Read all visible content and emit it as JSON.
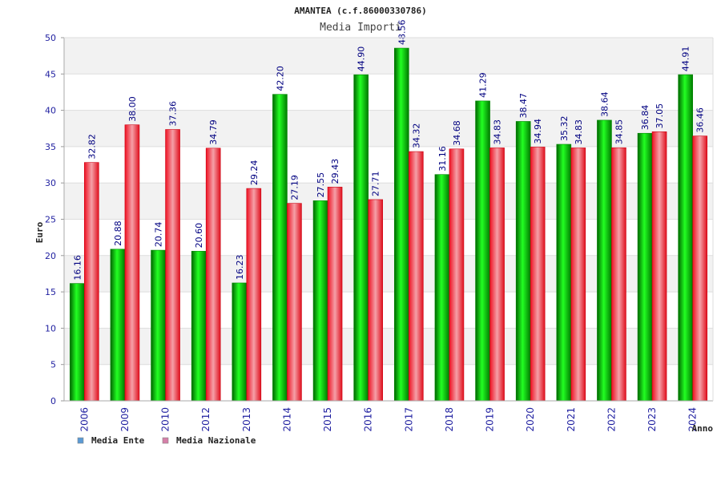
{
  "chart_data": {
    "type": "bar",
    "title": "AMANTEA (c.f.86000330786)",
    "subtitle": "Media Importi",
    "ylabel": "Euro",
    "xlabel": "Anno",
    "ylim": [
      0,
      50
    ],
    "yticks": [
      "0",
      "5",
      "10",
      "15",
      "20",
      "25",
      "30",
      "35",
      "40",
      "45",
      "50"
    ],
    "grid": true,
    "legend_position": "bottom-left",
    "categories": [
      "2006",
      "2009",
      "2010",
      "2012",
      "2013",
      "2014",
      "2015",
      "2016",
      "2017",
      "2018",
      "2019",
      "2020",
      "2021",
      "2022",
      "2023",
      "2024"
    ],
    "series": [
      {
        "name": "Media Ente",
        "color": "#00c000",
        "legend_color": "#5b9bd5",
        "values": [
          16.16,
          20.88,
          20.74,
          20.6,
          16.23,
          42.2,
          27.55,
          44.9,
          48.56,
          31.16,
          41.29,
          38.47,
          35.32,
          38.64,
          36.84,
          44.91
        ],
        "labels": [
          "16.16",
          "20.88",
          "20.74",
          "20.60",
          "16.23",
          "42.20",
          "27.55",
          "44.90",
          "48.56",
          "31.16",
          "41.29",
          "38.47",
          "35.32",
          "38.64",
          "36.84",
          "44.91"
        ]
      },
      {
        "name": "Media Nazionale",
        "color": "#e8152a",
        "legend_color": "#d67fa8",
        "values": [
          32.82,
          38.0,
          37.36,
          34.79,
          29.24,
          27.19,
          29.43,
          27.71,
          34.32,
          34.68,
          34.83,
          34.94,
          34.83,
          34.85,
          37.05,
          36.46
        ],
        "labels": [
          "32.82",
          "38.00",
          "37.36",
          "34.79",
          "29.24",
          "27.19",
          "29.43",
          "27.71",
          "34.32",
          "34.68",
          "34.83",
          "34.94",
          "34.83",
          "34.85",
          "37.05",
          "36.46"
        ]
      }
    ]
  }
}
